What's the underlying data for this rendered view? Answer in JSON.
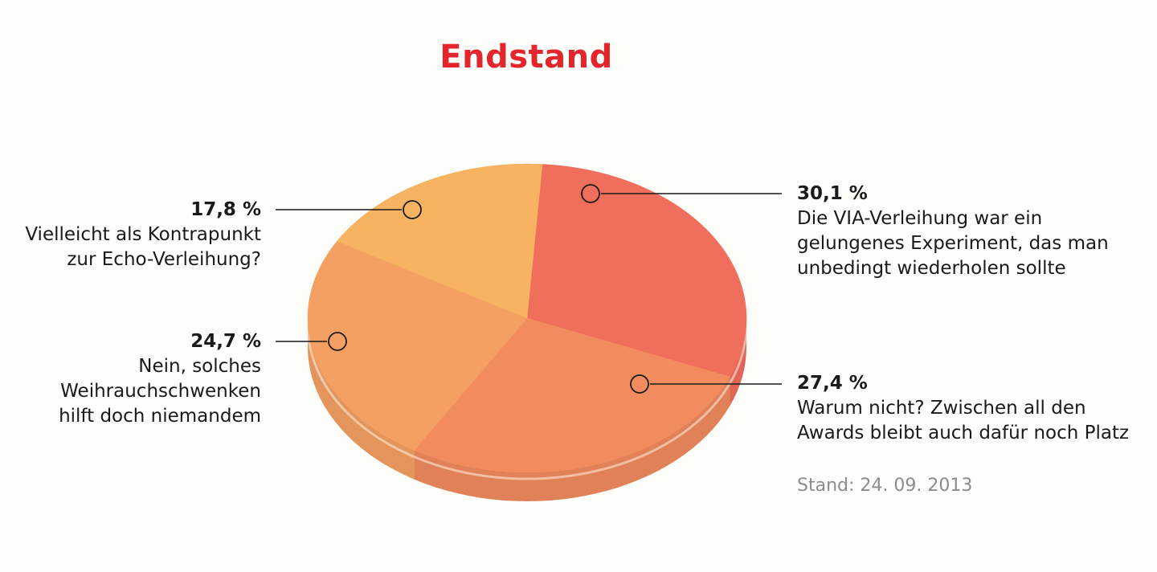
{
  "title": "Endstand",
  "stand": "Stand: 24. 09. 2013",
  "chart_data": {
    "type": "pie",
    "title": "Endstand",
    "slices": [
      {
        "value": 30.1,
        "pct_label": "30,1 %",
        "text": "Die VIA-Verleihung war ein\ngelungenes Experiment, das man\nunbedingt wiederholen sollte",
        "color": "#f06e5c"
      },
      {
        "value": 27.4,
        "pct_label": "27,4 %",
        "text": "Warum nicht? Zwischen all den\nAwards bleibt auch dafür noch Platz",
        "color": "#f28b5e"
      },
      {
        "value": 24.7,
        "pct_label": "24,7 %",
        "text": "Nein, solches\nWeihrauchschwenken\nhilft doch niemandem",
        "color": "#f4a062"
      },
      {
        "value": 17.8,
        "pct_label": "17,8 %",
        "text": "Vielleicht als Kontrapunkt\nzur Echo-Verleihung?",
        "color": "#f7b262"
      }
    ],
    "legend": "none"
  }
}
